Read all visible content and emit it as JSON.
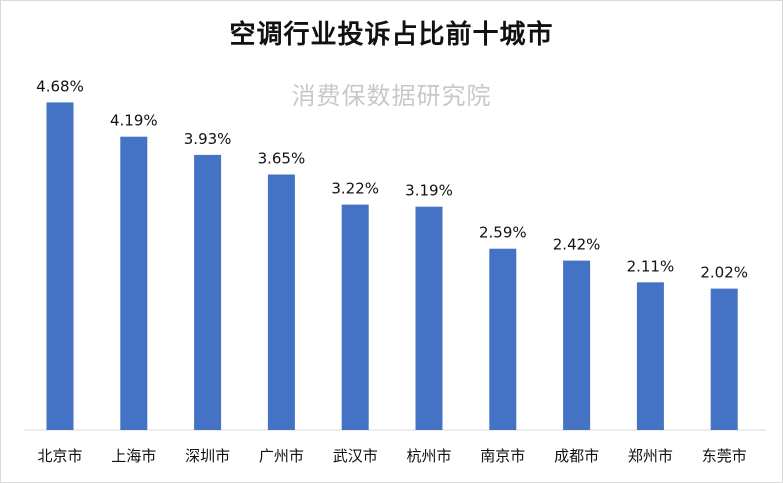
{
  "chart_data": {
    "type": "bar",
    "title": "空调行业投诉占比前十城市",
    "watermark": "消费保数据研究院",
    "categories": [
      "北京市",
      "上海市",
      "深圳市",
      "广州市",
      "武汉市",
      "杭州市",
      "南京市",
      "成都市",
      "郑州市",
      "东莞市"
    ],
    "values": [
      4.68,
      4.19,
      3.93,
      3.65,
      3.22,
      3.19,
      2.59,
      2.42,
      2.11,
      2.02
    ],
    "value_labels": [
      "4.68%",
      "4.19%",
      "3.93%",
      "3.65%",
      "3.22%",
      "3.19%",
      "2.59%",
      "2.42%",
      "2.11%",
      "2.02%"
    ],
    "ylim": [
      0,
      5.0
    ],
    "grid": false,
    "bar_color": "#4472c4"
  }
}
